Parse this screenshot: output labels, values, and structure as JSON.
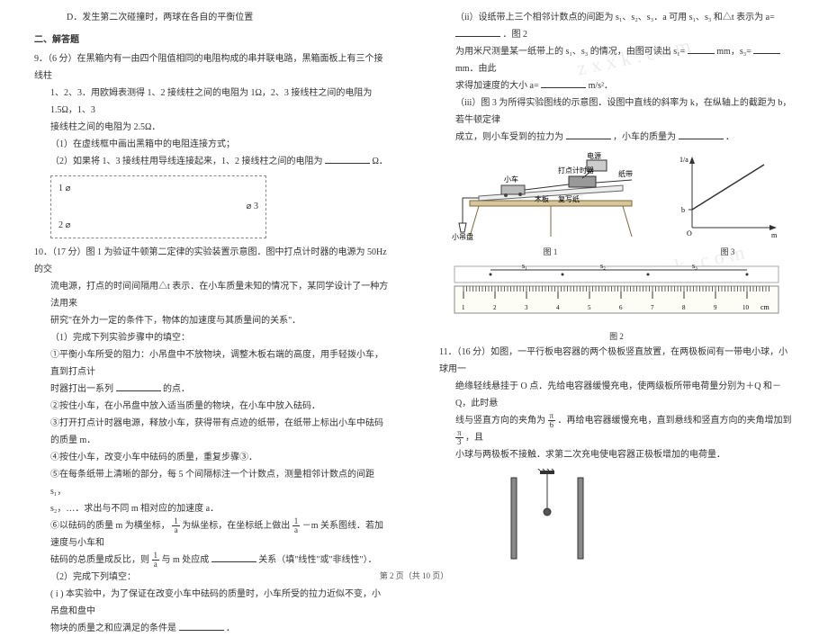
{
  "left": {
    "opt_d": "D．发生第二次碰撞时，两球在各自的平衡位置",
    "section": "二、解答题",
    "q9_head": "9．（6 分）在黑箱内有一由四个阻值相同的电阻构成的串并联电路，黑箱面板上有三个接线柱",
    "q9_l2": "1、2、3．用欧姆表测得 1、2 接线柱之间的电阻为 1Ω，2、3 接线柱之间的电阻为 1.5Ω，1、3",
    "q9_l3": "接线柱之间的电阻为 2.5Ω．",
    "q9_p1": "（1）在虚线框中画出黑箱中的电阻连接方式；",
    "q9_p2a": "（2）如果将 1、3 接线柱用导线连接起来，1、2 接线柱之间的电阻为",
    "q9_p2b": "Ω．",
    "t1": "1 ⌀",
    "t2": "2 ⌀",
    "t3": "⌀ 3",
    "q10_head": "10．（17 分）图 1 为验证牛顿第二定律的实验装置示意图．图中打点计时器的电源为 50Hz 的交",
    "q10_l2": "流电源，打点的时间间隔用△t 表示．在小车质量未知的情况下，某同学设计了一种方法用来",
    "q10_l3": "研究\"在外力一定的条件下，物体的加速度与其质量间的关系\"．",
    "q10_s1": "（1）完成下列实验步骤中的填空：",
    "q10_step1a": "①平衡小车所受的阻力：小吊盘中不放物块，调整木板右端的高度，用手轻拨小车，直到打点计",
    "q10_step1b": "时器打出一系列",
    "q10_step1c": "的点．",
    "q10_step2": "②按住小车，在小吊盘中放入适当质量的物块，在小车中放入砝码．",
    "q10_step3": "③打开打点计时器电源，释放小车，获得带有点迹的纸带，在纸带上标出小车中砝码的质量 m．",
    "q10_step4": "④按住小车，改变小车中砝码的质量，重复步骤③．",
    "q10_step5a": "⑤在每条纸带上清晰的部分，每 5 个间隔标注一个计数点，测量相邻计数点的间距 s₁，",
    "q10_step5b": "s₂，…．求出与不同 m 相对应的加速度 a．",
    "q10_step6a": "⑥以砝码的质量 m 为横坐标，",
    "q10_step6b": "为纵坐标，在坐标纸上做出",
    "q10_step6c": "－m 关系图线．若加速度与小车和",
    "q10_step6d": "砝码的总质量成反比，则",
    "q10_step6e": "与 m 处应成",
    "q10_step6f": "关系（填\"线性\"或\"非线性\"）．",
    "q10_s2": "（2）完成下列填空：",
    "q10_p2a": "( i ) 本实验中，为了保证在改变小车中砝码的质量时，小车所受的拉力近似不变，小吊盘和盘中",
    "q10_p2b": "物块的质量之和应满足的条件是",
    "q10_p2c": "．",
    "frac_1a_num": "1",
    "frac_1a_den": "a"
  },
  "right": {
    "r1a": "（ii）设纸带上三个相邻计数点的间距为 s₁、s₂、s₃．a 可用 s₁、s₃ 和△t 表示为 a=",
    "r1b": "．图 2",
    "r2a": "为用米尺测量某一纸带上的 s₁、s₃ 的情况，由图可读出 s₁=",
    "r2b": "mm，s₃=",
    "r2c": "mm．由此",
    "r3a": "求得加速度的大小 a=",
    "r3b": "m/s²．",
    "r4a": "（iii）图 3 为所得实验图线的示意图．设图中直线的斜率为 k，在纵轴上的截距为 b，若牛顿定律",
    "r5a": "成立，则小车受到的拉力为",
    "r5b": "，小车的质量为",
    "r5c": "．",
    "fig1_label": "图 1",
    "fig3_label": "图 3",
    "fig2_label": "图 2",
    "fig1_parts": {
      "car": "小车",
      "timer": "打点计时器",
      "tape": "纸带",
      "board": "木板",
      "paper": "复写纸",
      "pan": "小吊盘",
      "source": "电源"
    },
    "graph": {
      "yaxis": "1/a",
      "xaxis": "m",
      "origin": "O",
      "intercept_label": "b"
    },
    "q11_head": "11．（16 分）如图，一平行板电容器的两个极板竖直放置，在两极板间有一带电小球，小球用一",
    "q11_l2": "绝缘轻线悬挂于 O 点．先给电容器缓慢充电，使两级板所带电荷量分别为＋Q 和－Q，此时悬",
    "q11_l3a": "线与竖直方向的夹角为",
    "q11_l3b": "．再给电容器缓慢充电，直到悬线和竖直方向的夹角增加到",
    "q11_l3c": "，且",
    "q11_l4": "小球与两极板不接触．求第二次充电使电容器正极板增加的电荷量．",
    "pi": "π",
    "six": "6",
    "three": "3",
    "ruler": {
      "s1": "s₁",
      "s2": "s₂",
      "s3": "s₃",
      "cm": "cm",
      "marks": [
        "1",
        "2",
        "3",
        "4",
        "5",
        "6",
        "7",
        "8",
        "9",
        "10"
      ]
    }
  },
  "footer": "第 2 页（共 10 页）",
  "watermark": "zxxk.com"
}
